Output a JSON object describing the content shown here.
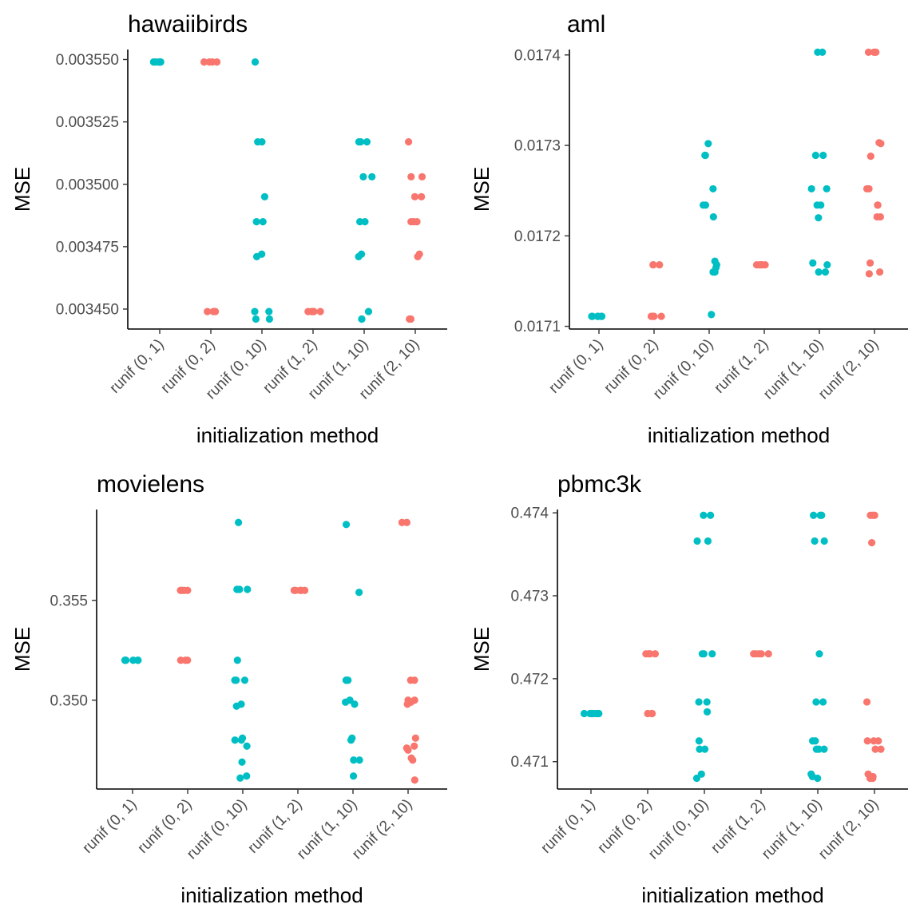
{
  "colors": {
    "series_a": "#00BFC4",
    "series_b": "#F8766D",
    "axis": "#000000",
    "tick_text": "#4d4d4d"
  },
  "chart_data": [
    {
      "type": "scatter",
      "title": "hawaiibirds",
      "xlabel": "initialization method",
      "ylabel": "MSE",
      "categories": [
        "runif (0, 1)",
        "runif (0, 2)",
        "runif (0, 10)",
        "runif (1, 2)",
        "runif (1, 10)",
        "runif (2, 10)"
      ],
      "point_colors": [
        "#00BFC4",
        "#F8766D",
        "#00BFC4",
        "#F8766D",
        "#00BFC4",
        "#F8766D"
      ],
      "ylim": [
        0.003442,
        0.003554
      ],
      "yticks": [
        0.00345,
        0.003475,
        0.0035,
        0.003525,
        0.00355
      ],
      "ytick_labels": [
        "0.003450",
        "0.003475",
        "0.003500",
        "0.003525",
        "0.003550"
      ],
      "grid": false,
      "points": [
        [
          0.003549,
          0.003549,
          0.003549,
          0.003549,
          0.003549,
          0.003549
        ],
        [
          0.003549,
          0.003549,
          0.003549,
          0.003549,
          0.003449,
          0.003449,
          0.003449
        ],
        [
          0.003549,
          0.003517,
          0.003517,
          0.003495,
          0.003485,
          0.003485,
          0.003472,
          0.003471,
          0.003449,
          0.003449,
          0.003446,
          0.003446
        ],
        [
          0.003449,
          0.003449,
          0.003449,
          0.003449,
          0.003449
        ],
        [
          0.003517,
          0.003517,
          0.003517,
          0.003503,
          0.003503,
          0.003485,
          0.003485,
          0.003472,
          0.003471,
          0.003449,
          0.003446,
          0.003446
        ],
        [
          0.003517,
          0.003503,
          0.003503,
          0.003495,
          0.003495,
          0.003485,
          0.003485,
          0.003485,
          0.003472,
          0.003471,
          0.003446,
          0.003446
        ]
      ]
    },
    {
      "type": "scatter",
      "title": "aml",
      "xlabel": "initialization method",
      "ylabel": "MSE",
      "categories": [
        "runif (0, 1)",
        "runif (0, 2)",
        "runif (0, 10)",
        "runif (1, 2)",
        "runif (1, 10)",
        "runif (2, 10)"
      ],
      "point_colors": [
        "#00BFC4",
        "#F8766D",
        "#00BFC4",
        "#F8766D",
        "#00BFC4",
        "#F8766D"
      ],
      "ylim": [
        0.017097,
        0.017406
      ],
      "yticks": [
        0.0171,
        0.0172,
        0.0173,
        0.0174
      ],
      "ytick_labels": [
        "0.0171",
        "0.0172",
        "0.0173",
        "0.0174"
      ],
      "grid": false,
      "points": [
        [
          0.017111,
          0.017111,
          0.017111,
          0.017111,
          0.017111,
          0.017111
        ],
        [
          0.017111,
          0.017111,
          0.017111,
          0.017111,
          0.017168,
          0.017168,
          0.017168
        ],
        [
          0.017302,
          0.017289,
          0.017289,
          0.017252,
          0.017234,
          0.017234,
          0.017221,
          0.017172,
          0.017168,
          0.017165,
          0.01716,
          0.01716,
          0.017113
        ],
        [
          0.017168,
          0.017168,
          0.017168,
          0.017168,
          0.017168
        ],
        [
          0.017403,
          0.017403,
          0.017289,
          0.017289,
          0.017252,
          0.017252,
          0.017234,
          0.017234,
          0.01722,
          0.01717,
          0.017168,
          0.01716,
          0.01716
        ],
        [
          0.017403,
          0.017403,
          0.017403,
          0.017303,
          0.017302,
          0.017288,
          0.017252,
          0.017252,
          0.017234,
          0.017234,
          0.017221,
          0.017221,
          0.01717,
          0.01716,
          0.017158
        ]
      ]
    },
    {
      "type": "scatter",
      "title": "movielens",
      "xlabel": "initialization method",
      "ylabel": "MSE",
      "categories": [
        "runif (0, 1)",
        "runif (0, 2)",
        "runif (0, 10)",
        "runif (1, 2)",
        "runif (1, 10)",
        "runif (2, 10)"
      ],
      "point_colors": [
        "#00BFC4",
        "#F8766D",
        "#00BFC4",
        "#F8766D",
        "#00BFC4",
        "#F8766D"
      ],
      "ylim": [
        0.34555,
        0.35955
      ],
      "yticks": [
        0.35,
        0.355
      ],
      "ytick_labels": [
        "0.350",
        "0.355"
      ],
      "grid": false,
      "points": [
        [
          0.352,
          0.352,
          0.352,
          0.352,
          0.352,
          0.352
        ],
        [
          0.3555,
          0.3555,
          0.3555,
          0.3555,
          0.352,
          0.352,
          0.352
        ],
        [
          0.3589,
          0.35555,
          0.35555,
          0.35555,
          0.352,
          0.351,
          0.351,
          0.351,
          0.3498,
          0.3497,
          0.3481,
          0.348,
          0.348,
          0.3477,
          0.3469,
          0.3462,
          0.3461
        ],
        [
          0.3555,
          0.3555,
          0.3555,
          0.3555,
          0.3555
        ],
        [
          0.3588,
          0.3554,
          0.351,
          0.351,
          0.351,
          0.35,
          0.3499,
          0.3498,
          0.3481,
          0.348,
          0.347,
          0.347,
          0.3462
        ],
        [
          0.3589,
          0.3589,
          0.351,
          0.351,
          0.35,
          0.35,
          0.3499,
          0.3498,
          0.3481,
          0.3477,
          0.3476,
          0.3475,
          0.3471,
          0.347,
          0.346
        ]
      ]
    },
    {
      "type": "scatter",
      "title": "pbmc3k",
      "xlabel": "initialization method",
      "ylabel": "MSE",
      "categories": [
        "runif (0, 1)",
        "runif (0, 2)",
        "runif (0, 10)",
        "runif (1, 2)",
        "runif (1, 10)",
        "runif (2, 10)"
      ],
      "point_colors": [
        "#00BFC4",
        "#F8766D",
        "#00BFC4",
        "#F8766D",
        "#00BFC4",
        "#F8766D"
      ],
      "ylim": [
        0.47067,
        0.47404
      ],
      "yticks": [
        0.471,
        0.472,
        0.473,
        0.474
      ],
      "ytick_labels": [
        "0.471",
        "0.472",
        "0.473",
        "0.474"
      ],
      "grid": false,
      "points": [
        [
          0.47158,
          0.47158,
          0.47158,
          0.47158,
          0.47158,
          0.47158
        ],
        [
          0.4723,
          0.4723,
          0.4723,
          0.4723,
          0.47158,
          0.47158,
          0.47158
        ],
        [
          0.47397,
          0.47397,
          0.47366,
          0.47366,
          0.4723,
          0.4723,
          0.4723,
          0.47172,
          0.47172,
          0.4716,
          0.47125,
          0.47115,
          0.47115,
          0.47085,
          0.4708
        ],
        [
          0.4723,
          0.4723,
          0.4723,
          0.4723,
          0.4723
        ],
        [
          0.47397,
          0.47397,
          0.47397,
          0.47366,
          0.47366,
          0.4723,
          0.47172,
          0.47172,
          0.47125,
          0.47125,
          0.47115,
          0.47115,
          0.47115,
          0.47085,
          0.47082,
          0.4708
        ],
        [
          0.47397,
          0.47397,
          0.47397,
          0.47364,
          0.47172,
          0.47125,
          0.47125,
          0.47125,
          0.47115,
          0.47115,
          0.47085,
          0.47082,
          0.4708,
          0.4708
        ]
      ]
    }
  ]
}
